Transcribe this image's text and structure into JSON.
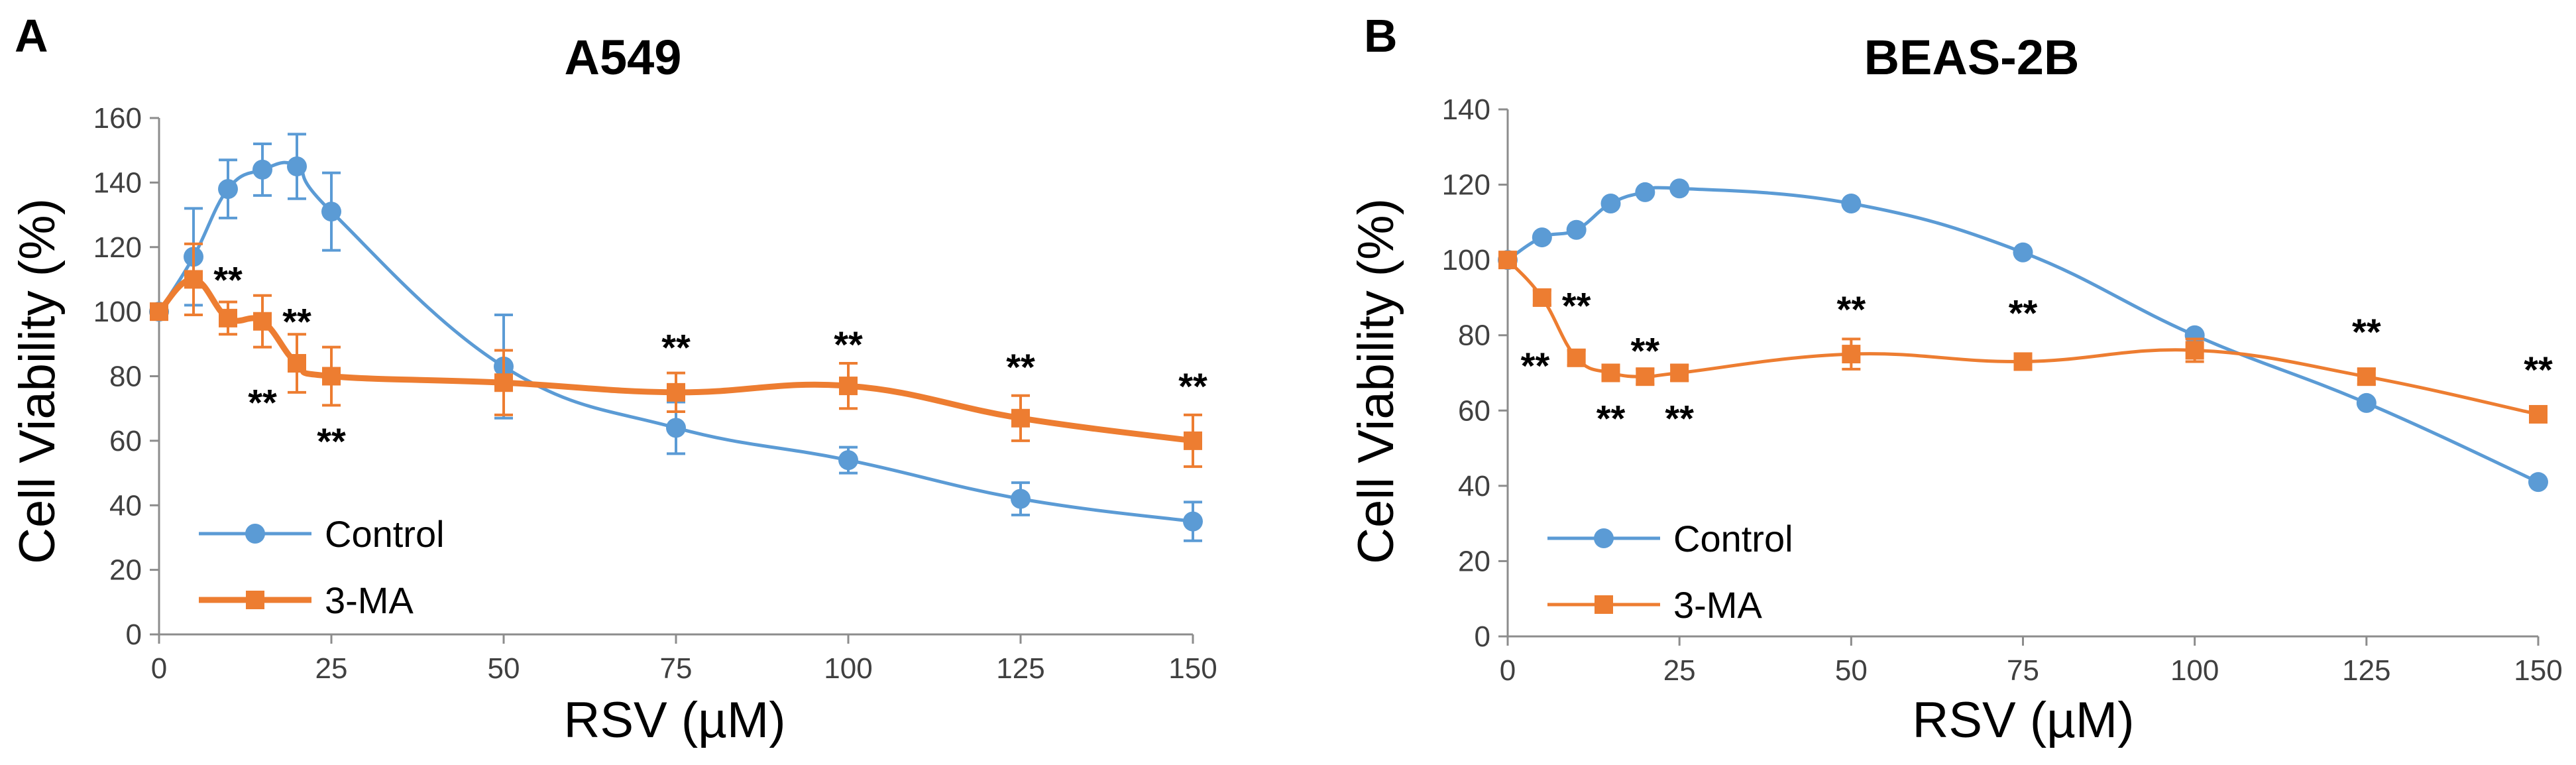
{
  "colors": {
    "control": "#5B9BD5",
    "treatment": "#ED7D31",
    "axis": "#8C8C8C",
    "text": "#000000"
  },
  "chart_data": [
    {
      "type": "line",
      "panel_label": "A",
      "title": "A549",
      "xlabel": "RSV (µM)",
      "ylabel": "Cell Viability (%)",
      "xlim": [
        0,
        150
      ],
      "ylim": [
        0,
        160
      ],
      "x_ticks": [
        0,
        25,
        50,
        75,
        100,
        125,
        150
      ],
      "y_ticks": [
        0,
        20,
        40,
        60,
        80,
        100,
        120,
        140,
        160
      ],
      "grid": false,
      "legend_position": "bottom-left",
      "series": [
        {
          "name": "Control",
          "marker": "circle",
          "x": [
            0,
            5,
            10,
            15,
            20,
            25,
            50,
            75,
            100,
            125,
            150
          ],
          "values": [
            100,
            117,
            138,
            144,
            145,
            131,
            83,
            64,
            54,
            42,
            35
          ],
          "errors": [
            0,
            15,
            9,
            8,
            10,
            12,
            16,
            8,
            4,
            5,
            6
          ]
        },
        {
          "name": "3-MA",
          "marker": "square",
          "x": [
            0,
            5,
            10,
            15,
            20,
            25,
            50,
            75,
            100,
            125,
            150
          ],
          "values": [
            100,
            110,
            98,
            97,
            84,
            80,
            78,
            75,
            77,
            67,
            60
          ],
          "errors": [
            0,
            11,
            5,
            8,
            9,
            9,
            10,
            6,
            7,
            7,
            8
          ]
        }
      ],
      "annotations": [
        {
          "text": "**",
          "x": 10,
          "y": 110
        },
        {
          "text": "**",
          "x": 20,
          "y": 97
        },
        {
          "text": "**",
          "x": 15,
          "y": 72
        },
        {
          "text": "**",
          "x": 25,
          "y": 60
        },
        {
          "text": "**",
          "x": 75,
          "y": 89
        },
        {
          "text": "**",
          "x": 100,
          "y": 90
        },
        {
          "text": "**",
          "x": 125,
          "y": 83
        },
        {
          "text": "**",
          "x": 150,
          "y": 77
        }
      ]
    },
    {
      "type": "line",
      "panel_label": "B",
      "title": "BEAS-2B",
      "xlabel": "RSV (µM)",
      "ylabel": "Cell Viability (%)",
      "xlim": [
        0,
        150
      ],
      "ylim": [
        0,
        140
      ],
      "x_ticks": [
        0,
        25,
        50,
        75,
        100,
        125,
        150
      ],
      "y_ticks": [
        0,
        20,
        40,
        60,
        80,
        100,
        120,
        140
      ],
      "grid": false,
      "legend_position": "bottom-left",
      "series": [
        {
          "name": "Control",
          "marker": "circle",
          "x": [
            0,
            5,
            10,
            15,
            20,
            25,
            50,
            75,
            100,
            125,
            150
          ],
          "values": [
            100,
            106,
            108,
            115,
            118,
            119,
            115,
            102,
            80,
            62,
            41
          ],
          "errors": [
            0,
            0,
            0,
            0,
            0,
            0,
            0,
            0,
            0,
            0,
            0
          ]
        },
        {
          "name": "3-MA",
          "marker": "square",
          "x": [
            0,
            5,
            10,
            15,
            20,
            25,
            50,
            75,
            100,
            125,
            150
          ],
          "values": [
            100,
            90,
            74,
            70,
            69,
            70,
            75,
            73,
            76,
            69,
            59
          ],
          "errors": [
            0,
            2,
            2,
            2,
            2,
            2,
            4,
            2,
            3,
            2,
            2
          ]
        }
      ],
      "annotations": [
        {
          "text": "**",
          "x": 10,
          "y": 88
        },
        {
          "text": "**",
          "x": 4,
          "y": 72
        },
        {
          "text": "**",
          "x": 20,
          "y": 76
        },
        {
          "text": "**",
          "x": 15,
          "y": 58
        },
        {
          "text": "**",
          "x": 25,
          "y": 58
        },
        {
          "text": "**",
          "x": 50,
          "y": 87
        },
        {
          "text": "**",
          "x": 75,
          "y": 86
        },
        {
          "text": "**",
          "x": 125,
          "y": 81
        },
        {
          "text": "**",
          "x": 150,
          "y": 71
        }
      ]
    }
  ]
}
